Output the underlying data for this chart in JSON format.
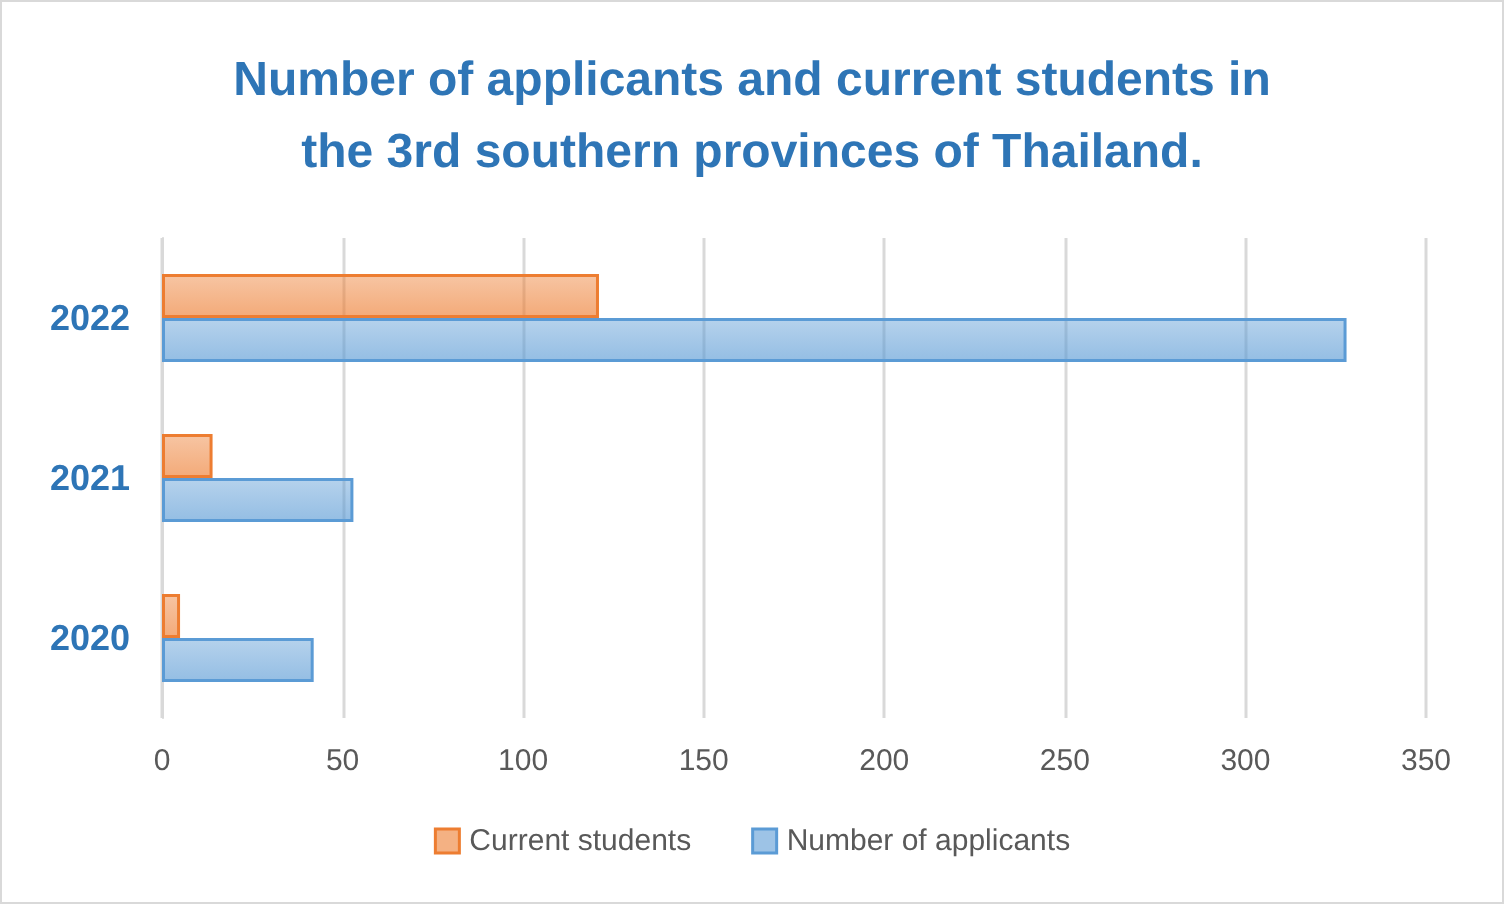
{
  "chart_data": {
    "type": "bar",
    "orientation": "horizontal",
    "title": "Number of applicants and current students in\nthe 3rd southern provinces of Thailand.",
    "categories": [
      "2022",
      "2021",
      "2020"
    ],
    "series": [
      {
        "name": "Current students",
        "color": "#ed7d31",
        "values": [
          121,
          14,
          5
        ]
      },
      {
        "name": "Number of applicants",
        "color": "#5b9bd5",
        "values": [
          328,
          53,
          42
        ]
      }
    ],
    "xlim": [
      0,
      350
    ],
    "xticks": [
      0,
      50,
      100,
      150,
      200,
      250,
      300,
      350
    ],
    "grid": "x",
    "legend": "bottom"
  }
}
